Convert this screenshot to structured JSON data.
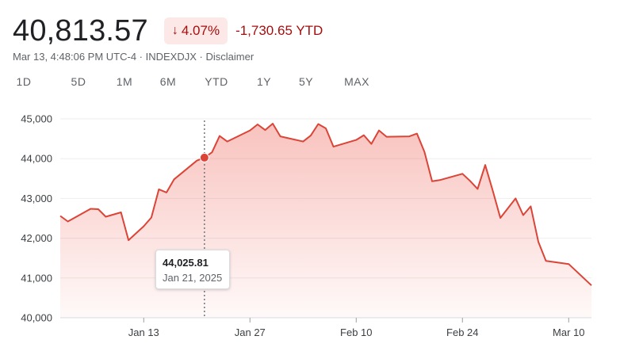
{
  "header": {
    "price": "40,813.57",
    "change_percent": "4.07%",
    "change_arrow": "↓",
    "ytd_change": "-1,730.65 YTD"
  },
  "meta": {
    "timestamp": "Mar 13, 4:48:06 PM UTC-4",
    "separator": " · ",
    "exchange": "INDEXDJX",
    "disclaimer": "Disclaimer"
  },
  "tabs": [
    {
      "label": "1D",
      "active": false
    },
    {
      "label": "5D",
      "active": false
    },
    {
      "label": "1M",
      "active": false
    },
    {
      "label": "6M",
      "active": false
    },
    {
      "label": "YTD",
      "active": true
    },
    {
      "label": "1Y",
      "active": false
    },
    {
      "label": "5Y",
      "active": false
    },
    {
      "label": "MAX",
      "active": false
    }
  ],
  "tooltip": {
    "value": "44,025.81",
    "date": "Jan 21, 2025"
  },
  "colors": {
    "line": "#db4437",
    "negative": "#a50e0e",
    "badge_bg": "#fce8e6",
    "accent": "#1a73e8"
  },
  "chart_data": {
    "type": "area",
    "title": "",
    "xlabel": "",
    "ylabel": "",
    "ylim": [
      40000,
      45000
    ],
    "yticks": [
      40000,
      41000,
      42000,
      43000,
      44000,
      45000
    ],
    "ytick_labels": [
      "40,000",
      "41,000",
      "42,000",
      "43,000",
      "44,000",
      "45,000"
    ],
    "xtick_labels": [
      "Jan 13",
      "Jan 27",
      "Feb 10",
      "Feb 24",
      "Mar 10"
    ],
    "xtick_dates": [
      "2025-01-13",
      "2025-01-27",
      "2025-02-10",
      "2025-02-24",
      "2025-03-10"
    ],
    "grid": true,
    "highlight": {
      "date": "2025-01-21",
      "value": 44025.81
    },
    "series": [
      {
        "values": [
          [
            "2025-01-02",
            42560
          ],
          [
            "2025-01-03",
            42420
          ],
          [
            "2025-01-06",
            42740
          ],
          [
            "2025-01-07",
            42730
          ],
          [
            "2025-01-08",
            42540
          ],
          [
            "2025-01-10",
            42650
          ],
          [
            "2025-01-11",
            41950
          ],
          [
            "2025-01-13",
            42300
          ],
          [
            "2025-01-14",
            42520
          ],
          [
            "2025-01-15",
            43230
          ],
          [
            "2025-01-16",
            43150
          ],
          [
            "2025-01-17",
            43480
          ],
          [
            "2025-01-20",
            43950
          ],
          [
            "2025-01-21",
            44025.81
          ],
          [
            "2025-01-22",
            44160
          ],
          [
            "2025-01-23",
            44570
          ],
          [
            "2025-01-24",
            44430
          ],
          [
            "2025-01-27",
            44710
          ],
          [
            "2025-01-28",
            44860
          ],
          [
            "2025-01-29",
            44720
          ],
          [
            "2025-01-30",
            44880
          ],
          [
            "2025-01-31",
            44560
          ],
          [
            "2025-02-03",
            44430
          ],
          [
            "2025-02-04",
            44580
          ],
          [
            "2025-02-05",
            44870
          ],
          [
            "2025-02-06",
            44760
          ],
          [
            "2025-02-07",
            44300
          ],
          [
            "2025-02-10",
            44470
          ],
          [
            "2025-02-11",
            44590
          ],
          [
            "2025-02-12",
            44370
          ],
          [
            "2025-02-13",
            44710
          ],
          [
            "2025-02-14",
            44550
          ],
          [
            "2025-02-17",
            44560
          ],
          [
            "2025-02-18",
            44630
          ],
          [
            "2025-02-19",
            44170
          ],
          [
            "2025-02-20",
            43430
          ],
          [
            "2025-02-21",
            43460
          ],
          [
            "2025-02-24",
            43620
          ],
          [
            "2025-02-25",
            43440
          ],
          [
            "2025-02-26",
            43240
          ],
          [
            "2025-02-27",
            43840
          ],
          [
            "2025-02-28",
            43190
          ],
          [
            "2025-03-01",
            42510
          ],
          [
            "2025-03-03",
            43000
          ],
          [
            "2025-03-04",
            42580
          ],
          [
            "2025-03-05",
            42800
          ],
          [
            "2025-03-06",
            41910
          ],
          [
            "2025-03-07",
            41430
          ],
          [
            "2025-03-10",
            41350
          ],
          [
            "2025-03-13",
            40813.57
          ]
        ]
      }
    ]
  }
}
